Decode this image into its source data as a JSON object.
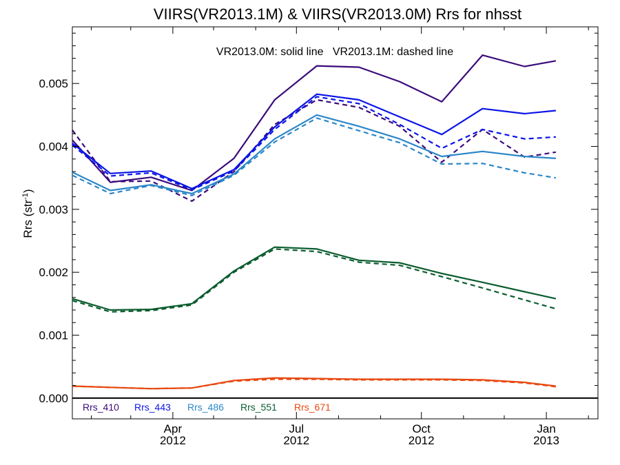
{
  "chart_data": {
    "type": "line",
    "title": "VIIRS(VR2013.1M) & VIIRS(VR2013.0M)  Rrs for nhsst",
    "annotation": "VR2013.0M: solid line   VR2013.1M: dashed line",
    "ylabel": "Rrs (str",
    "ylabel_sup": "-1",
    "ylabel_close": ")",
    "ylim": [
      -0.00033,
      0.0059
    ],
    "xlim": [
      "2012-01-18",
      "2013-02-08"
    ],
    "grid": false,
    "legend_position": "bottom-left",
    "yticks": [
      {
        "value": 0.0,
        "label": "0.000"
      },
      {
        "value": 0.001,
        "label": "0.001"
      },
      {
        "value": 0.002,
        "label": "0.002"
      },
      {
        "value": 0.003,
        "label": "0.003"
      },
      {
        "value": 0.004,
        "label": "0.004"
      },
      {
        "value": 0.005,
        "label": "0.005"
      }
    ],
    "xticks": [
      {
        "date": "2012-04-01",
        "label1": "Apr",
        "label2": "2012"
      },
      {
        "date": "2012-07-01",
        "label1": "Jul",
        "label2": "2012"
      },
      {
        "date": "2012-10-01",
        "label1": "Oct",
        "label2": "2012"
      },
      {
        "date": "2013-01-01",
        "label1": "Jan",
        "label2": "2013"
      }
    ],
    "x": [
      "2012-01-18",
      "2012-02-15",
      "2012-03-16",
      "2012-04-15",
      "2012-05-16",
      "2012-06-15",
      "2012-07-16",
      "2012-08-16",
      "2012-09-15",
      "2012-10-16",
      "2012-11-15",
      "2012-12-16",
      "2013-01-08"
    ],
    "series": [
      {
        "name": "Rrs_410",
        "color": "#3b0a7a",
        "solid": [
          0.0041,
          0.00343,
          0.00351,
          0.0033,
          0.00381,
          0.00474,
          0.00528,
          0.00526,
          0.00503,
          0.00471,
          0.00545,
          0.00527,
          0.00536
        ],
        "dashed": [
          0.00426,
          0.00344,
          0.00345,
          0.00313,
          0.0036,
          0.00435,
          0.00474,
          0.00462,
          0.00432,
          0.00375,
          0.00427,
          0.00383,
          0.00391
        ]
      },
      {
        "name": "Rrs_443",
        "color": "#0a14e6",
        "solid": [
          0.00405,
          0.00357,
          0.00361,
          0.00333,
          0.00363,
          0.00431,
          0.00483,
          0.00474,
          0.00447,
          0.00419,
          0.0046,
          0.00452,
          0.00457
        ],
        "dashed": [
          0.00402,
          0.00353,
          0.00358,
          0.00331,
          0.00361,
          0.00427,
          0.00479,
          0.00468,
          0.00435,
          0.00397,
          0.00427,
          0.00412,
          0.00415
        ]
      },
      {
        "name": "Rrs_486",
        "color": "#2a86c8",
        "solid": [
          0.00359,
          0.0033,
          0.00339,
          0.00325,
          0.00356,
          0.00412,
          0.0045,
          0.00432,
          0.00412,
          0.00384,
          0.00392,
          0.00384,
          0.00381
        ],
        "dashed": [
          0.00354,
          0.00325,
          0.00338,
          0.00322,
          0.00354,
          0.00407,
          0.00445,
          0.00425,
          0.00406,
          0.00372,
          0.00373,
          0.00358,
          0.0035
        ]
      },
      {
        "name": "Rrs_551",
        "color": "#0a5c2e",
        "solid": [
          0.00158,
          0.0014,
          0.00141,
          0.0015,
          0.00202,
          0.0024,
          0.00237,
          0.00219,
          0.00215,
          0.00198,
          0.00184,
          0.00169,
          0.00158
        ],
        "dashed": [
          0.00155,
          0.00137,
          0.00139,
          0.00148,
          0.002,
          0.00237,
          0.00233,
          0.00216,
          0.00211,
          0.00193,
          0.00175,
          0.00156,
          0.00142
        ]
      },
      {
        "name": "Rrs_671",
        "color": "#e8480f",
        "solid": [
          0.00019,
          0.00017,
          0.00015,
          0.00016,
          0.00028,
          0.00032,
          0.00031,
          0.0003,
          0.0003,
          0.0003,
          0.00029,
          0.00025,
          0.00019
        ],
        "dashed": [
          0.00019,
          0.00017,
          0.00015,
          0.00016,
          0.00027,
          0.0003,
          0.0003,
          0.00029,
          0.00029,
          0.00029,
          0.00028,
          0.00024,
          0.00018
        ]
      }
    ]
  }
}
